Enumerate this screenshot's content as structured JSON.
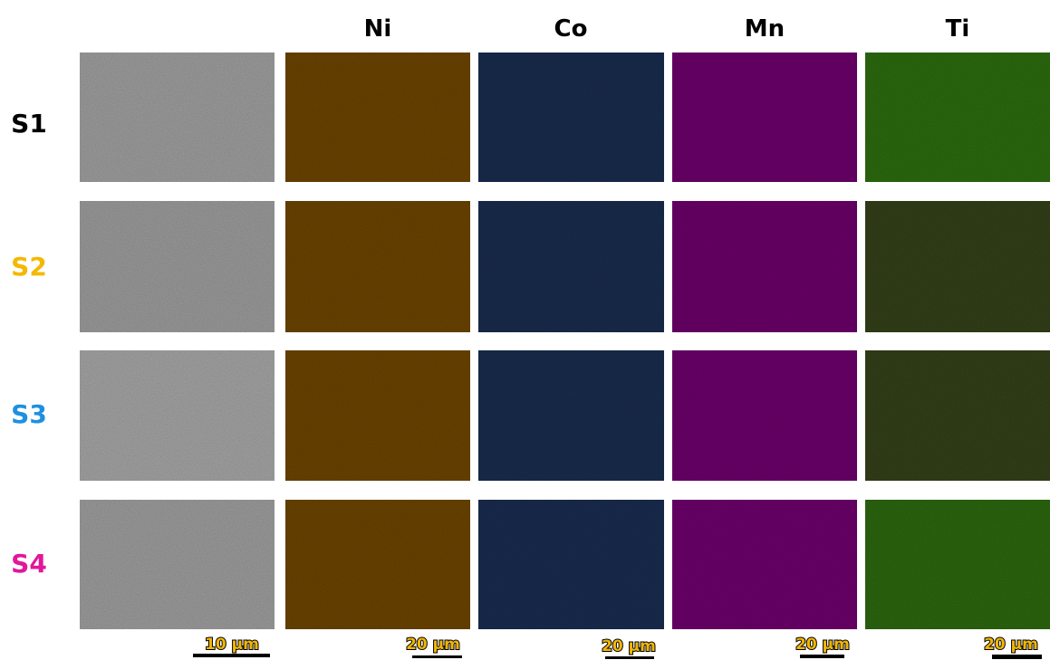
{
  "column_headers": [
    "Ni",
    "Co",
    "Mn",
    "Ti"
  ],
  "rows": [
    {
      "label": "S1"
    },
    {
      "label": "S2"
    },
    {
      "label": "S3"
    },
    {
      "label": "S4"
    }
  ],
  "scale_bars": [
    "10 μm",
    "20 μm",
    "20 μm",
    "20 μm",
    "20 μm"
  ]
}
